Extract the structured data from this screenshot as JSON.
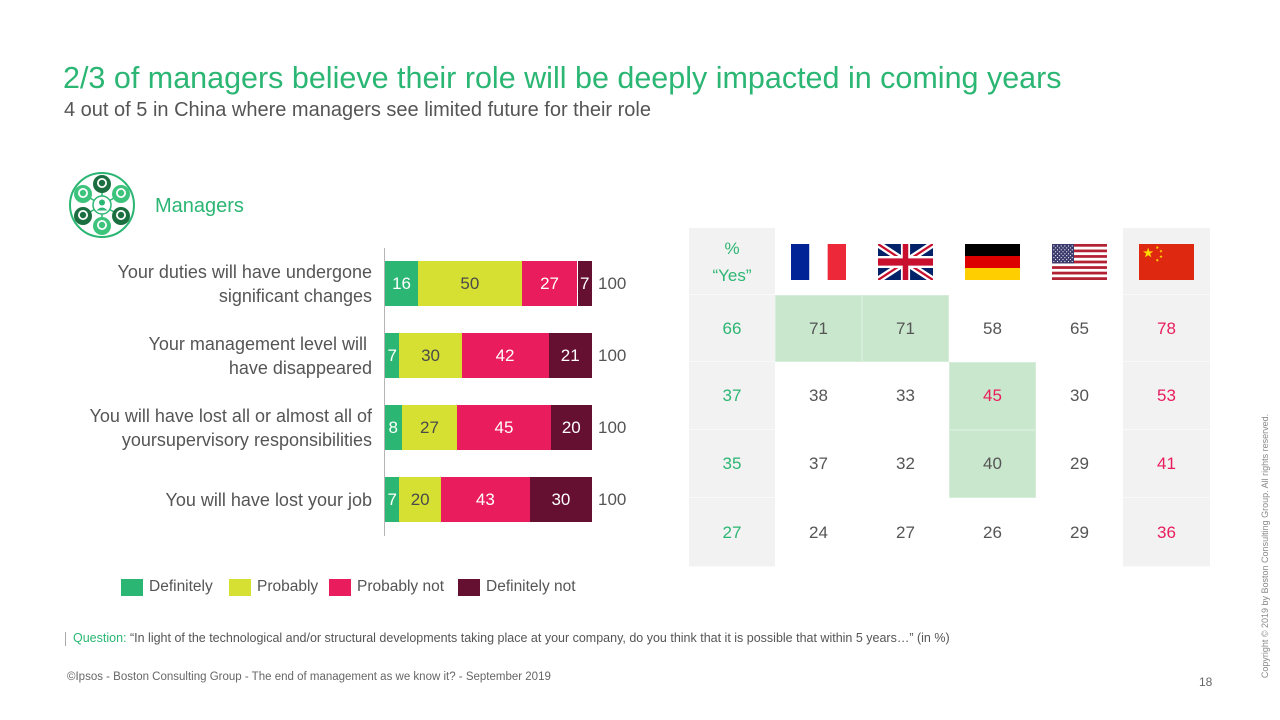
{
  "slide": {
    "title": "2/3 of managers believe their role will be deeply impacted in coming years",
    "subtitle": "4 out of 5 in China where managers see limited future for their role",
    "segment_label": "Managers",
    "segment_icon": "managers-network-icon",
    "question_label": "Question:",
    "question_text": " “In light of the technological and/or structural developments taking place at your company, do you think that it is possible that within 5 years…” (in %)",
    "footer_source": "©Ipsos - Boston Consulting Group - The end of management as we know it? - September 2019",
    "page_number": "18",
    "copyright": "Copyright © 2019 by Boston Consulting Group. All rights reserved."
  },
  "colors": {
    "brand_green": "#2bb673",
    "text_gray": "#555555",
    "emphasis_red": "#e91c5d",
    "highlight_fill": "#c9e7cd",
    "shaded_fill": "#f2f2f2"
  },
  "chart_data": [
    {
      "type": "bar",
      "orientation": "horizontal",
      "stacked": true,
      "title": "",
      "xlabel": "",
      "ylabel": "",
      "xlim": [
        0,
        100
      ],
      "grid": false,
      "legend": "bottom",
      "categories": [
        [
          "Your duties will have undergone",
          "significant changes"
        ],
        [
          "Your management level will ",
          "have disappeared"
        ],
        [
          "You will have lost all or almost all of",
          "yoursupervisory responsibilities"
        ],
        [
          "You will have lost your job"
        ]
      ],
      "series": [
        {
          "name": "Definitely",
          "color": "#2bb673",
          "label_color": "#ffffff",
          "values": [
            16,
            7,
            8,
            7
          ]
        },
        {
          "name": "Probably",
          "color": "#d5e033",
          "label_color": "#4a4a4a",
          "values": [
            50,
            30,
            27,
            20
          ]
        },
        {
          "name": "Probably not",
          "color": "#e91c5d",
          "label_color": "#ffffff",
          "values": [
            27,
            42,
            45,
            43
          ]
        },
        {
          "name": "Definitely not",
          "color": "#650f31",
          "label_color": "#ffffff",
          "values": [
            7,
            21,
            20,
            30
          ]
        }
      ],
      "totals": [
        100,
        100,
        100,
        100
      ]
    },
    {
      "type": "table",
      "title": "% “Yes” by country",
      "header_label_lines": [
        "%",
        "“Yes”"
      ],
      "countries": [
        {
          "name": "France",
          "icon": "flag-france-icon"
        },
        {
          "name": "United Kingdom",
          "icon": "flag-uk-icon"
        },
        {
          "name": "Germany",
          "icon": "flag-germany-icon"
        },
        {
          "name": "United States",
          "icon": "flag-usa-icon"
        },
        {
          "name": "China",
          "icon": "flag-china-icon"
        }
      ],
      "rows": [
        {
          "total": 66,
          "cells": [
            {
              "value": 71,
              "highlight": true,
              "emphasis": false
            },
            {
              "value": 71,
              "highlight": true,
              "emphasis": false
            },
            {
              "value": 58,
              "highlight": false,
              "emphasis": false
            },
            {
              "value": 65,
              "highlight": false,
              "emphasis": false
            },
            {
              "value": 78,
              "highlight": false,
              "emphasis": true
            }
          ]
        },
        {
          "total": 37,
          "cells": [
            {
              "value": 38,
              "highlight": false,
              "emphasis": false
            },
            {
              "value": 33,
              "highlight": false,
              "emphasis": false
            },
            {
              "value": 45,
              "highlight": true,
              "emphasis": true
            },
            {
              "value": 30,
              "highlight": false,
              "emphasis": false
            },
            {
              "value": 53,
              "highlight": false,
              "emphasis": true
            }
          ]
        },
        {
          "total": 35,
          "cells": [
            {
              "value": 37,
              "highlight": false,
              "emphasis": false
            },
            {
              "value": 32,
              "highlight": false,
              "emphasis": false
            },
            {
              "value": 40,
              "highlight": true,
              "emphasis": false
            },
            {
              "value": 29,
              "highlight": false,
              "emphasis": false
            },
            {
              "value": 41,
              "highlight": false,
              "emphasis": true
            }
          ]
        },
        {
          "total": 27,
          "cells": [
            {
              "value": 24,
              "highlight": false,
              "emphasis": false
            },
            {
              "value": 27,
              "highlight": false,
              "emphasis": false
            },
            {
              "value": 26,
              "highlight": false,
              "emphasis": false
            },
            {
              "value": 29,
              "highlight": false,
              "emphasis": false
            },
            {
              "value": 36,
              "highlight": false,
              "emphasis": true
            }
          ]
        }
      ]
    }
  ]
}
